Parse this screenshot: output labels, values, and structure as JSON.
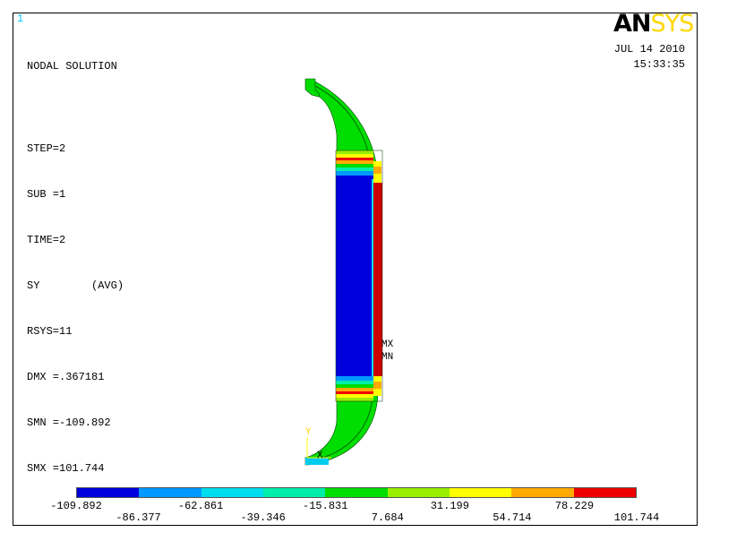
{
  "window_number": "1",
  "solution": {
    "title": "NODAL SOLUTION",
    "step": "STEP=2",
    "sub": "SUB =1",
    "time": "TIME=2",
    "component": "SY        (AVG)",
    "rsys": "RSYS=11",
    "dmx": "DMX =.367181",
    "smn": "SMN =-109.892",
    "smx": "SMX =101.744"
  },
  "logo": {
    "part1": "AN",
    "part2": "SYS"
  },
  "date": "JUL 14 2010",
  "time": "15:33:35",
  "markers": {
    "max": "MX",
    "min": "MN"
  },
  "axis": {
    "y": "Y",
    "x": "X"
  },
  "legend": {
    "colors": [
      "#0000dd",
      "#0099ff",
      "#00ddee",
      "#00eeaa",
      "#00dd00",
      "#99ee00",
      "#ffff00",
      "#ffaa00",
      "#ee0000"
    ],
    "values": [
      "-109.892",
      "-86.377",
      "-62.861",
      "-39.346",
      "-15.831",
      "7.684",
      "31.199",
      "54.714",
      "78.229",
      "101.744"
    ]
  }
}
